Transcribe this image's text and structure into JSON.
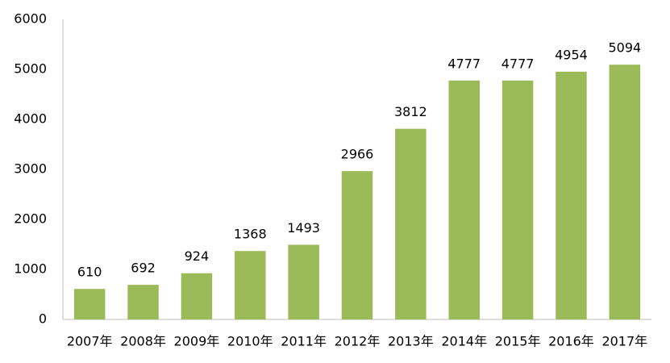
{
  "chart_data": {
    "type": "bar",
    "categories": [
      "2007年",
      "2008年",
      "2009年",
      "2010年",
      "2011年",
      "2012年",
      "2013年",
      "2014年",
      "2015年",
      "2016年",
      "2017年"
    ],
    "values": [
      610,
      692,
      924,
      1368,
      1493,
      2966,
      3812,
      4777,
      4777,
      4954,
      5094
    ],
    "color": "#9bbb59",
    "ylim": [
      0,
      6000
    ],
    "yticks": [
      0,
      1000,
      2000,
      3000,
      4000,
      5000,
      6000
    ],
    "grid": false
  }
}
